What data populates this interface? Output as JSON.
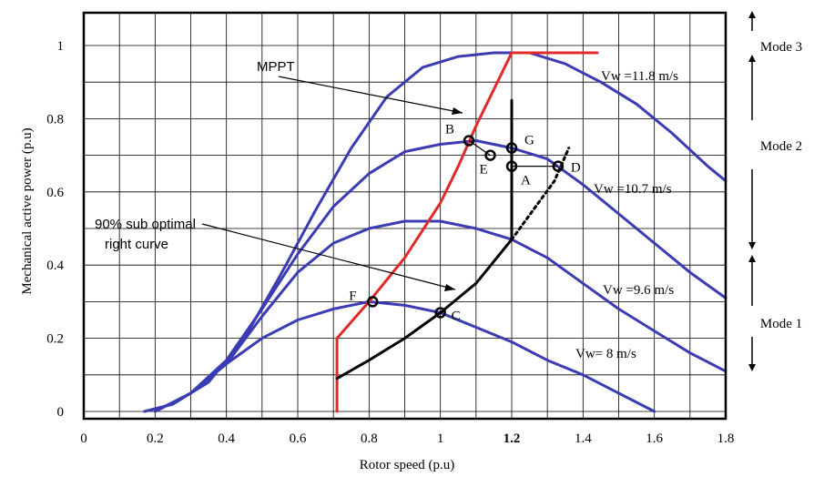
{
  "chart_data": {
    "type": "line",
    "title": "",
    "xlabel": "Rotor speed (p.u)",
    "ylabel": "Mechanical active power (p.u)",
    "xlim": [
      0,
      1.8
    ],
    "ylim": [
      0,
      1.0
    ],
    "xticks": [
      {
        "value": 0,
        "label": "0",
        "bold": false
      },
      {
        "value": 0.2,
        "label": "0.2",
        "bold": false
      },
      {
        "value": 0.4,
        "label": "0.4",
        "bold": false
      },
      {
        "value": 0.6,
        "label": "0.6",
        "bold": false
      },
      {
        "value": 0.8,
        "label": "0.8",
        "bold": false
      },
      {
        "value": 1.0,
        "label": "1",
        "bold": false
      },
      {
        "value": 1.2,
        "label": "1.2",
        "bold": true
      },
      {
        "value": 1.4,
        "label": "1.4",
        "bold": false
      },
      {
        "value": 1.6,
        "label": "1.6",
        "bold": false
      },
      {
        "value": 1.8,
        "label": "1.8",
        "bold": false
      }
    ],
    "yticks": [
      {
        "value": 0,
        "label": "0"
      },
      {
        "value": 0.2,
        "label": "0.2"
      },
      {
        "value": 0.4,
        "label": "0.4"
      },
      {
        "value": 0.6,
        "label": "0.6"
      },
      {
        "value": 0.8,
        "label": "0.8"
      },
      {
        "value": 1.0,
        "label": "1"
      }
    ],
    "grid": true,
    "series": [
      {
        "name": "Vw =11.8 m/s",
        "color": "#3b3bb3",
        "points": [
          [
            0.17,
            0.0
          ],
          [
            0.25,
            0.02
          ],
          [
            0.35,
            0.08
          ],
          [
            0.45,
            0.2
          ],
          [
            0.55,
            0.37
          ],
          [
            0.65,
            0.55
          ],
          [
            0.75,
            0.72
          ],
          [
            0.85,
            0.86
          ],
          [
            0.95,
            0.94
          ],
          [
            1.05,
            0.97
          ],
          [
            1.15,
            0.98
          ],
          [
            1.25,
            0.98
          ],
          [
            1.35,
            0.95
          ],
          [
            1.45,
            0.9
          ],
          [
            1.55,
            0.84
          ],
          [
            1.65,
            0.76
          ],
          [
            1.75,
            0.67
          ],
          [
            1.8,
            0.63
          ]
        ]
      },
      {
        "name": "Vw =10.7 m/s",
        "color": "#3b3bb3",
        "points": [
          [
            0.2,
            0.0
          ],
          [
            0.3,
            0.05
          ],
          [
            0.4,
            0.14
          ],
          [
            0.5,
            0.28
          ],
          [
            0.6,
            0.43
          ],
          [
            0.7,
            0.56
          ],
          [
            0.8,
            0.65
          ],
          [
            0.9,
            0.71
          ],
          [
            1.0,
            0.73
          ],
          [
            1.1,
            0.74
          ],
          [
            1.2,
            0.72
          ],
          [
            1.3,
            0.69
          ],
          [
            1.4,
            0.62
          ],
          [
            1.5,
            0.54
          ],
          [
            1.6,
            0.46
          ],
          [
            1.7,
            0.38
          ],
          [
            1.8,
            0.31
          ]
        ]
      },
      {
        "name": "Vw =9.6 m/s",
        "color": "#3b3bb3",
        "points": [
          [
            0.2,
            0.0
          ],
          [
            0.3,
            0.05
          ],
          [
            0.4,
            0.13
          ],
          [
            0.5,
            0.26
          ],
          [
            0.6,
            0.38
          ],
          [
            0.7,
            0.46
          ],
          [
            0.8,
            0.5
          ],
          [
            0.9,
            0.52
          ],
          [
            1.0,
            0.52
          ],
          [
            1.1,
            0.5
          ],
          [
            1.2,
            0.47
          ],
          [
            1.3,
            0.42
          ],
          [
            1.4,
            0.35
          ],
          [
            1.5,
            0.28
          ],
          [
            1.6,
            0.22
          ],
          [
            1.7,
            0.16
          ],
          [
            1.8,
            0.11
          ]
        ]
      },
      {
        "name": "Vw= 8 m/s",
        "color": "#3b3bb3",
        "points": [
          [
            0.2,
            0.0
          ],
          [
            0.3,
            0.05
          ],
          [
            0.4,
            0.13
          ],
          [
            0.5,
            0.2
          ],
          [
            0.6,
            0.25
          ],
          [
            0.7,
            0.28
          ],
          [
            0.8,
            0.3
          ],
          [
            0.9,
            0.29
          ],
          [
            1.0,
            0.27
          ],
          [
            1.1,
            0.23
          ],
          [
            1.2,
            0.19
          ],
          [
            1.3,
            0.14
          ],
          [
            1.4,
            0.1
          ],
          [
            1.5,
            0.05
          ],
          [
            1.6,
            0.0
          ]
        ]
      },
      {
        "name": "MPPT",
        "color": "#e02a2a",
        "points": [
          [
            0.71,
            0.0
          ],
          [
            0.71,
            0.2
          ],
          [
            0.8,
            0.3
          ],
          [
            0.9,
            0.42
          ],
          [
            1.0,
            0.57
          ],
          [
            1.05,
            0.67
          ],
          [
            1.1,
            0.78
          ],
          [
            1.15,
            0.88
          ],
          [
            1.2,
            0.98
          ],
          [
            1.44,
            0.98
          ]
        ]
      },
      {
        "name": "90% sub optimal right curve",
        "color": "#000000",
        "points": [
          [
            0.71,
            0.09
          ],
          [
            0.8,
            0.14
          ],
          [
            0.9,
            0.2
          ],
          [
            1.0,
            0.27
          ],
          [
            1.1,
            0.35
          ],
          [
            1.2,
            0.47
          ],
          [
            1.2,
            0.85
          ]
        ]
      },
      {
        "name": "",
        "color": "#000000",
        "dashed": true,
        "points": [
          [
            1.2,
            0.47
          ],
          [
            1.26,
            0.55
          ],
          [
            1.32,
            0.63
          ],
          [
            1.36,
            0.72
          ]
        ]
      }
    ],
    "points": [
      {
        "label": "B",
        "x": 1.08,
        "y": 0.74
      },
      {
        "label": "E",
        "x": 1.14,
        "y": 0.7
      },
      {
        "label": "G",
        "x": 1.2,
        "y": 0.72
      },
      {
        "label": "A",
        "x": 1.2,
        "y": 0.67
      },
      {
        "label": "D",
        "x": 1.33,
        "y": 0.67
      },
      {
        "label": "F",
        "x": 0.81,
        "y": 0.3
      },
      {
        "label": "C",
        "x": 1.0,
        "y": 0.27
      }
    ],
    "annotations": [
      {
        "text": "MPPT"
      },
      {
        "text": "90% sub optimal"
      },
      {
        "text": "right curve"
      }
    ],
    "modes": [
      {
        "label": "Mode 3"
      },
      {
        "label": "Mode 2"
      },
      {
        "label": "Mode 1"
      }
    ]
  }
}
